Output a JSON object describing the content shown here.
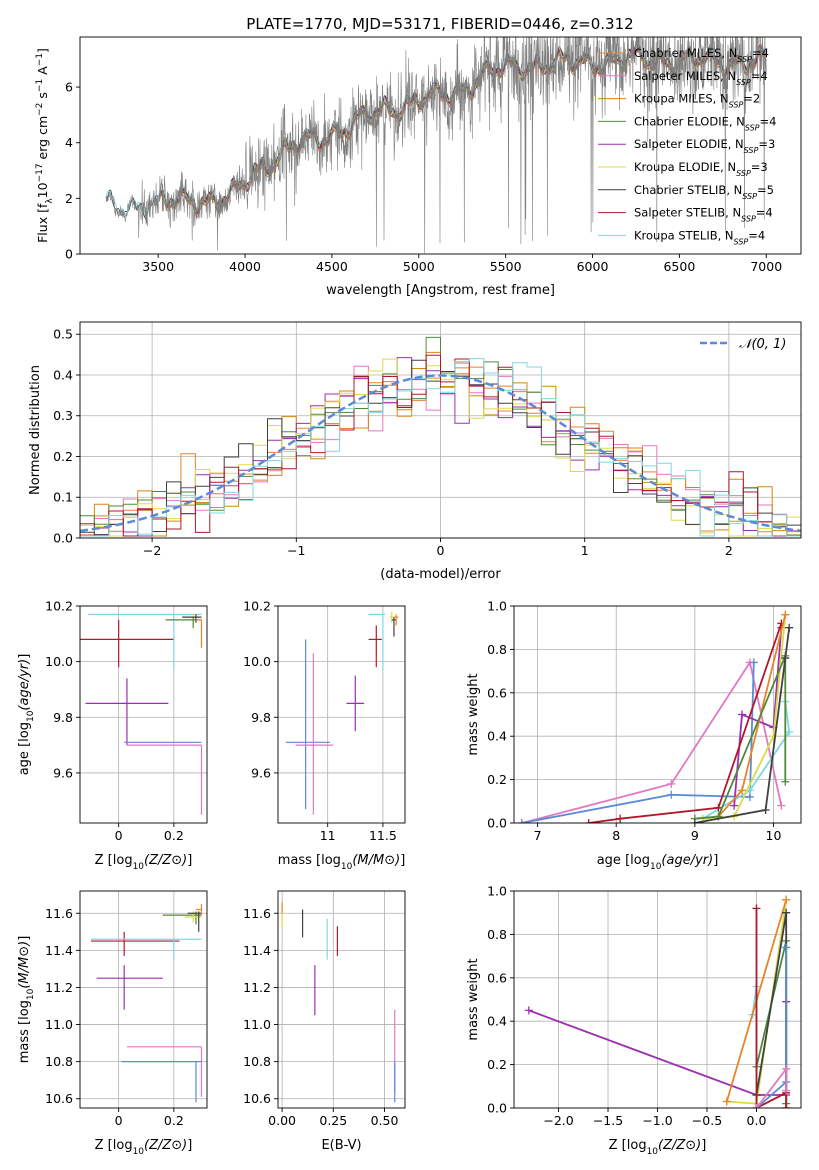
{
  "figure": {
    "title": "PLATE=1770, MJD=53171, FIBERID=0446, z=0.312"
  },
  "legend_spectrum": [
    {
      "name": "Chabrier MILES, N_SSP=4",
      "base": "Chabrier MILES, N",
      "sub": "SSP",
      "tail": "=4",
      "color": "#e8842a"
    },
    {
      "name": "Salpeter MILES, N_SSP=4",
      "base": "Salpeter MILES, N",
      "sub": "SSP",
      "tail": "=4",
      "color": "#e377c2"
    },
    {
      "name": "Kroupa MILES, N_SSP=2",
      "base": "Kroupa MILES, N",
      "sub": "SSP",
      "tail": "=2",
      "color": "#d4870f"
    },
    {
      "name": "Chabrier ELODIE, N_SSP=4",
      "base": "Chabrier ELODIE, N",
      "sub": "SSP",
      "tail": "=4",
      "color": "#4f8a3b"
    },
    {
      "name": "Salpeter ELODIE, N_SSP=3",
      "base": "Salpeter ELODIE, N",
      "sub": "SSP",
      "tail": "=3",
      "color": "#9c2fb0"
    },
    {
      "name": "Kroupa ELODIE, N_SSP=3",
      "base": "Kroupa ELODIE, N",
      "sub": "SSP",
      "tail": "=3",
      "color": "#dbdb4a"
    },
    {
      "name": "Chabrier STELIB, N_SSP=5",
      "base": "Chabrier STELIB, N",
      "sub": "SSP",
      "tail": "=5",
      "color": "#404040"
    },
    {
      "name": "Salpeter STELIB, N_SSP=4",
      "base": "Salpeter STELIB, N",
      "sub": "SSP",
      "tail": "=4",
      "color": "#b2182b"
    },
    {
      "name": "Kroupa STELIB, N_SSP=4",
      "base": "Kroupa STELIB, N",
      "sub": "SSP",
      "tail": "=4",
      "color": "#7fd8e0"
    }
  ],
  "legend_hist": {
    "label": "𝒩(0, 1)",
    "color": "#5b8bd6"
  },
  "chart_data": [
    {
      "id": "spectrum",
      "type": "line",
      "xlabel": "wavelength [Angstrom, rest frame]",
      "ylabel_parts": [
        "Flux [f",
        "λ",
        "10",
        "−17",
        " erg cm",
        "−2",
        " s",
        "−1",
        " A",
        "−1",
        "]"
      ],
      "xlim": [
        3050,
        7200
      ],
      "ylim": [
        0,
        7.8
      ],
      "xticks": [
        3500,
        4000,
        4500,
        5000,
        5500,
        6000,
        6500,
        7000
      ],
      "yticks": [
        0,
        2,
        4,
        6
      ],
      "data_range": [
        3200,
        7000
      ],
      "continuum": {
        "x": [
          3200,
          3300,
          3500,
          3700,
          3850,
          3950,
          4050,
          4300,
          4600,
          4800,
          5000,
          5200,
          5400,
          5600,
          6000,
          6300,
          6600,
          7000
        ],
        "y": [
          1.75,
          1.7,
          1.75,
          2.05,
          1.85,
          2.15,
          3.0,
          3.9,
          4.6,
          5.2,
          5.5,
          5.8,
          6.5,
          6.8,
          6.9,
          7.0,
          6.95,
          6.9
        ]
      },
      "grid": false
    },
    {
      "id": "residuals",
      "type": "histogram",
      "xlabel": "(data-model)/error",
      "ylabel": "Normed distribution",
      "xlim": [
        -2.5,
        2.5
      ],
      "ylim": [
        0,
        0.53
      ],
      "xticks": [
        -2,
        -1,
        0,
        1,
        2
      ],
      "xticklabels": [
        "−2",
        "−1",
        "0",
        "1",
        "2"
      ],
      "yticks": [
        0.0,
        0.1,
        0.2,
        0.3,
        0.4,
        0.5
      ],
      "yticklabels": [
        "0.0",
        "0.1",
        "0.2",
        "0.3",
        "0.4",
        "0.5"
      ],
      "bin_width": 0.1,
      "gaussian": {
        "mean": 0,
        "sigma": 1
      },
      "grid": true
    },
    {
      "id": "age_vs_Z",
      "type": "errorbar",
      "xlabel": "Z [log10(Z/Z⊙)]",
      "ylabel": "age [log10(age/yr)]",
      "xlim": [
        -0.14,
        0.32
      ],
      "ylim": [
        9.42,
        10.2
      ],
      "xticks": [
        0.0,
        0.2
      ],
      "yticks": [
        9.6,
        9.8,
        10.0,
        10.2
      ],
      "points": [
        {
          "x": 0.0,
          "y": 10.08,
          "xerr": [
            0.14,
            0.2
          ],
          "yerr": [
            0.1,
            0.07
          ],
          "color": "#b2182b"
        },
        {
          "x": 0.03,
          "y": 9.85,
          "xerr": [
            0.15,
            0.15
          ],
          "yerr": [
            0.15,
            0.09
          ],
          "color": "#9c2fb0"
        },
        {
          "x": 0.28,
          "y": 9.71,
          "xerr": [
            0.26,
            0.02
          ],
          "yerr": [
            0.0,
            0.0
          ],
          "color": "#5b8bd6"
        },
        {
          "x": 0.3,
          "y": 9.7,
          "xerr": [
            0.27,
            0.0
          ],
          "yerr": [
            0.25,
            0.0
          ],
          "color": "#e377c2"
        },
        {
          "x": 0.2,
          "y": 10.17,
          "xerr": [
            0.31,
            0.1
          ],
          "yerr": [
            0.2,
            0.0
          ],
          "color": "#7fd8e0"
        },
        {
          "x": 0.27,
          "y": 10.16,
          "xerr": [
            0.03,
            0.03
          ],
          "yerr": [
            0.02,
            0.01
          ],
          "color": "#dbdb4a"
        },
        {
          "x": 0.27,
          "y": 10.15,
          "xerr": [
            0.1,
            0.03
          ],
          "yerr": [
            0.03,
            0.01
          ],
          "color": "#4f8a3b"
        },
        {
          "x": 0.28,
          "y": 10.16,
          "xerr": [
            0.05,
            0.02
          ],
          "yerr": [
            0.02,
            0.01
          ],
          "color": "#404040"
        },
        {
          "x": 0.3,
          "y": 10.15,
          "xerr": [
            0.02,
            0.0
          ],
          "yerr": [
            0.1,
            0.0
          ],
          "color": "#e8842a"
        }
      ],
      "grid": true
    },
    {
      "id": "age_vs_mass",
      "type": "errorbar",
      "xlabel": "mass [log10(M/M⊙)]",
      "ylabel": "",
      "xlim": [
        10.55,
        11.7
      ],
      "ylim": [
        9.42,
        10.2
      ],
      "xticks": [
        11.0,
        11.5
      ],
      "yticks": [
        9.6,
        9.8,
        10.0,
        10.2
      ],
      "points": [
        {
          "x": 10.8,
          "y": 9.71,
          "xerr": [
            0.18,
            0.22
          ],
          "yerr": [
            0.24,
            0.37
          ],
          "color": "#5b8bd6"
        },
        {
          "x": 10.87,
          "y": 9.7,
          "xerr": [
            0.16,
            0.18
          ],
          "yerr": [
            0.25,
            0.33
          ],
          "color": "#e377c2"
        },
        {
          "x": 11.25,
          "y": 9.85,
          "xerr": [
            0.08,
            0.08
          ],
          "yerr": [
            0.1,
            0.1
          ],
          "color": "#9c2fb0"
        },
        {
          "x": 11.44,
          "y": 10.08,
          "xerr": [
            0.07,
            0.05
          ],
          "yerr": [
            0.1,
            0.05
          ],
          "color": "#b2182b"
        },
        {
          "x": 11.5,
          "y": 10.17,
          "xerr": [
            0.13,
            0.02
          ],
          "yerr": [
            0.2,
            0.0
          ],
          "color": "#7fd8e0"
        },
        {
          "x": 11.58,
          "y": 10.16,
          "xerr": [
            0.02,
            0.02
          ],
          "yerr": [
            0.02,
            0.02
          ],
          "color": "#dbdb4a"
        },
        {
          "x": 11.6,
          "y": 10.15,
          "xerr": [
            0.02,
            0.02
          ],
          "yerr": [
            0.06,
            0.01
          ],
          "color": "#404040"
        },
        {
          "x": 11.62,
          "y": 10.16,
          "xerr": [
            0.02,
            0.02
          ],
          "yerr": [
            0.03,
            0.01
          ],
          "color": "#e8842a"
        }
      ],
      "grid": true
    },
    {
      "id": "weight_vs_age",
      "type": "line",
      "xlabel": "age [log10(age/yr)]",
      "ylabel": "mass weight",
      "xlim": [
        6.7,
        10.35
      ],
      "ylim": [
        0,
        1
      ],
      "xticks": [
        7,
        8,
        9,
        10
      ],
      "yticks": [
        0.0,
        0.2,
        0.4,
        0.6,
        0.8,
        1.0
      ],
      "series": [
        {
          "color": "#e377c2",
          "x": [
            6.8,
            8.7,
            9.7,
            10.1
          ],
          "y": [
            0.0,
            0.18,
            0.74,
            0.08
          ]
        },
        {
          "color": "#5b8bd6",
          "x": [
            6.8,
            8.7,
            9.7,
            9.75
          ],
          "y": [
            0.0,
            0.13,
            0.12,
            0.74
          ]
        },
        {
          "color": "#7fd8e0",
          "x": [
            9.1,
            9.7,
            10.2,
            10.15
          ],
          "y": [
            0.02,
            0.15,
            0.42,
            0.56
          ]
        },
        {
          "color": "#9c2fb0",
          "x": [
            9.5,
            9.6,
            10.0,
            10.1
          ],
          "y": [
            0.08,
            0.5,
            0.44,
            0.9
          ]
        },
        {
          "color": "#b2182b",
          "x": [
            7.65,
            8.05,
            9.3,
            10.1
          ],
          "y": [
            0.0,
            0.02,
            0.07,
            0.92
          ]
        },
        {
          "color": "#dbdb4a",
          "x": [
            9.1,
            9.5,
            10.0,
            10.15
          ],
          "y": [
            0.02,
            0.03,
            0.4,
            0.96
          ]
        },
        {
          "color": "#e8842a",
          "x": [
            9.3,
            9.6,
            10.15
          ],
          "y": [
            0.03,
            0.15,
            0.96
          ]
        },
        {
          "color": "#4f8a3b",
          "x": [
            9.0,
            9.3,
            10.15,
            10.15
          ],
          "y": [
            0.02,
            0.03,
            0.77,
            0.19
          ]
        },
        {
          "color": "#404040",
          "x": [
            9.0,
            9.9,
            10.15,
            10.2
          ],
          "y": [
            0.0,
            0.06,
            0.76,
            0.9
          ]
        }
      ],
      "grid": true
    },
    {
      "id": "mass_vs_Z",
      "type": "errorbar",
      "xlabel": "Z [log10(Z/Z⊙)]",
      "ylabel": "mass [log10(M/M⊙)]",
      "xlim": [
        -0.14,
        0.32
      ],
      "ylim": [
        10.55,
        11.72
      ],
      "xticks": [
        0.0,
        0.2
      ],
      "yticks": [
        10.6,
        10.8,
        11.0,
        11.2,
        11.4,
        11.6
      ],
      "points": [
        {
          "x": 0.02,
          "y": 11.45,
          "xerr": [
            0.12,
            0.2
          ],
          "yerr": [
            0.08,
            0.05
          ],
          "color": "#b2182b"
        },
        {
          "x": 0.02,
          "y": 11.25,
          "xerr": [
            0.1,
            0.14
          ],
          "yerr": [
            0.17,
            0.07
          ],
          "color": "#9c2fb0"
        },
        {
          "x": 0.3,
          "y": 10.88,
          "xerr": [
            0.27,
            0.0
          ],
          "yerr": [
            0.27,
            0.0
          ],
          "color": "#e377c2"
        },
        {
          "x": 0.28,
          "y": 10.8,
          "xerr": [
            0.27,
            0.02
          ],
          "yerr": [
            0.22,
            0.0
          ],
          "color": "#5b8bd6"
        },
        {
          "x": 0.2,
          "y": 11.46,
          "xerr": [
            0.3,
            0.1
          ],
          "yerr": [
            0.11,
            0.0
          ],
          "color": "#7fd8e0"
        },
        {
          "x": 0.28,
          "y": 11.59,
          "xerr": [
            0.12,
            0.02
          ],
          "yerr": [
            0.05,
            0.02
          ],
          "color": "#4f8a3b"
        },
        {
          "x": 0.27,
          "y": 11.58,
          "xerr": [
            0.03,
            0.03
          ],
          "yerr": [
            0.03,
            0.03
          ],
          "color": "#dbdb4a"
        },
        {
          "x": 0.29,
          "y": 11.6,
          "xerr": [
            0.04,
            0.01
          ],
          "yerr": [
            0.1,
            0.01
          ],
          "color": "#404040"
        },
        {
          "x": 0.3,
          "y": 11.62,
          "xerr": [
            0.02,
            0.0
          ],
          "yerr": [
            0.03,
            0.03
          ],
          "color": "#e8842a"
        }
      ],
      "grid": true
    },
    {
      "id": "mass_vs_ebv",
      "type": "errorbar",
      "xlabel": "E(B-V)",
      "ylabel": "",
      "xlim": [
        -0.02,
        0.6
      ],
      "ylim": [
        10.55,
        11.72
      ],
      "xticks": [
        0.0,
        0.25,
        0.5
      ],
      "yticks": [
        10.6,
        10.8,
        11.0,
        11.2,
        11.4,
        11.6
      ],
      "points": [
        {
          "x": 0.0,
          "y": 11.6,
          "xerr": [
            0,
            0
          ],
          "yerr": [
            0.08,
            0.05
          ],
          "color": "#dbdb4a"
        },
        {
          "x": 0.0,
          "y": 11.63,
          "xerr": [
            0,
            0
          ],
          "yerr": [
            0.03,
            0.03
          ],
          "color": "#e8842a"
        },
        {
          "x": 0.1,
          "y": 11.55,
          "xerr": [
            0,
            0
          ],
          "yerr": [
            0.08,
            0.07
          ],
          "color": "#404040"
        },
        {
          "x": 0.16,
          "y": 11.25,
          "xerr": [
            0,
            0
          ],
          "yerr": [
            0.2,
            0.07
          ],
          "color": "#9c2fb0"
        },
        {
          "x": 0.22,
          "y": 11.46,
          "xerr": [
            0,
            0
          ],
          "yerr": [
            0.11,
            0.11
          ],
          "color": "#7fd8e0"
        },
        {
          "x": 0.27,
          "y": 11.45,
          "xerr": [
            0,
            0
          ],
          "yerr": [
            0.08,
            0.08
          ],
          "color": "#b2182b"
        },
        {
          "x": 0.55,
          "y": 10.88,
          "xerr": [
            0,
            0
          ],
          "yerr": [
            0.25,
            0.2
          ],
          "color": "#e377c2"
        },
        {
          "x": 0.55,
          "y": 10.8,
          "xerr": [
            0,
            0
          ],
          "yerr": [
            0.22,
            0.0
          ],
          "color": "#5b8bd6"
        }
      ],
      "grid": true
    },
    {
      "id": "weight_vs_Z",
      "type": "line",
      "xlabel": "Z [log10(Z/Z⊙)]",
      "ylabel": "mass weight",
      "xlim": [
        -2.45,
        0.45
      ],
      "ylim": [
        0,
        1
      ],
      "xticks": [
        -2.0,
        -1.5,
        -1.0,
        -0.5,
        0.0
      ],
      "xticklabels": [
        "−2.0",
        "−1.5",
        "−1.0",
        "−0.5",
        "0.0"
      ],
      "yticks": [
        0.0,
        0.2,
        0.4,
        0.6,
        0.8,
        1.0
      ],
      "series": [
        {
          "color": "#9c2fb0",
          "x": [
            -2.3,
            0.0,
            0.3,
            0.3
          ],
          "y": [
            0.45,
            0.06,
            0.06,
            0.49
          ]
        },
        {
          "color": "#7fd8e0",
          "x": [
            -0.04,
            0.0,
            0.0
          ],
          "y": [
            0.43,
            0.56,
            0.0
          ]
        },
        {
          "color": "#dbdb4a",
          "x": [
            -0.3,
            0.0,
            0.3
          ],
          "y": [
            0.03,
            0.02,
            0.96
          ]
        },
        {
          "color": "#e8842a",
          "x": [
            -0.3,
            0.3
          ],
          "y": [
            0.03,
            0.96
          ]
        },
        {
          "color": "#4f8a3b",
          "x": [
            0.0,
            0.3,
            0.3
          ],
          "y": [
            0.19,
            0.77,
            0.02
          ]
        },
        {
          "color": "#404040",
          "x": [
            0.0,
            0.3,
            0.3
          ],
          "y": [
            0.06,
            0.9,
            0.0
          ]
        },
        {
          "color": "#b2182b",
          "x": [
            0.0,
            0.0,
            0.3,
            0.3
          ],
          "y": [
            0.92,
            0.0,
            0.07,
            0.0
          ]
        },
        {
          "color": "#5b8bd6",
          "x": [
            0.0,
            0.3,
            0.3
          ],
          "y": [
            0.0,
            0.12,
            0.74
          ]
        },
        {
          "color": "#e377c2",
          "x": [
            0.0,
            0.3,
            0.3
          ],
          "y": [
            0.0,
            0.18,
            0.08
          ]
        }
      ],
      "grid": true
    }
  ]
}
